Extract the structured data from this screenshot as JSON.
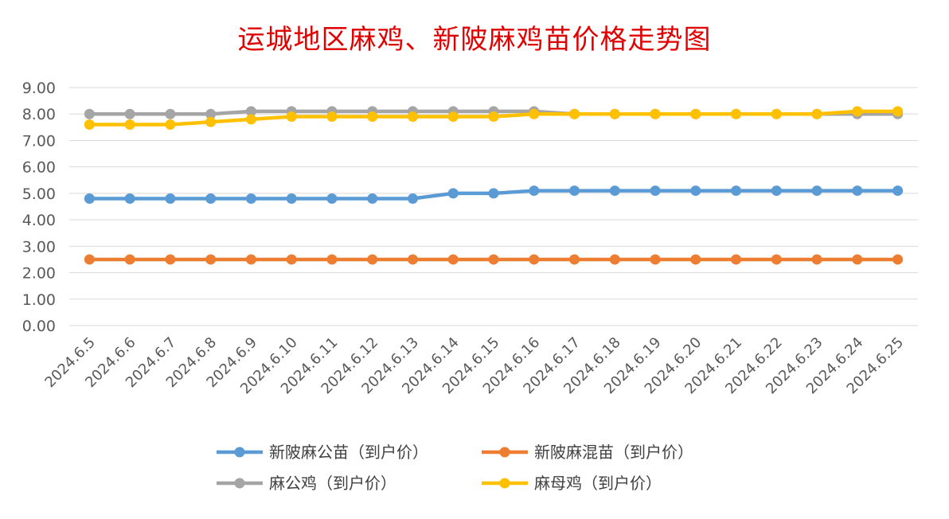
{
  "chart_data": {
    "type": "line",
    "title": "运城地区麻鸡、新陂麻鸡苗价格走势图",
    "xlabel": "",
    "ylabel": "",
    "ylim": [
      0,
      9
    ],
    "ytick_labels": [
      "0.00",
      "1.00",
      "2.00",
      "3.00",
      "4.00",
      "5.00",
      "6.00",
      "7.00",
      "8.00",
      "9.00"
    ],
    "grid": true,
    "legend_position": "bottom",
    "categories": [
      "2024.6.5",
      "2024.6.6",
      "2024.6.7",
      "2024.6.8",
      "2024.6.9",
      "2024.6.10",
      "2024.6.11",
      "2024.6.12",
      "2024.6.13",
      "2024.6.14",
      "2024.6.15",
      "2024.6.16",
      "2024.6.17",
      "2024.6.18",
      "2024.6.19",
      "2024.6.20",
      "2024.6.21",
      "2024.6.22",
      "2024.6.23",
      "2024.6.24",
      "2024.6.25"
    ],
    "series": [
      {
        "name": "新陂麻公苗（到户价）",
        "color": "#5b9bd5",
        "values": [
          4.8,
          4.8,
          4.8,
          4.8,
          4.8,
          4.8,
          4.8,
          4.8,
          4.8,
          5.0,
          5.0,
          5.1,
          5.1,
          5.1,
          5.1,
          5.1,
          5.1,
          5.1,
          5.1,
          5.1,
          5.1
        ]
      },
      {
        "name": "新陂麻混苗（到户价）",
        "color": "#ed7d31",
        "values": [
          2.5,
          2.5,
          2.5,
          2.5,
          2.5,
          2.5,
          2.5,
          2.5,
          2.5,
          2.5,
          2.5,
          2.5,
          2.5,
          2.5,
          2.5,
          2.5,
          2.5,
          2.5,
          2.5,
          2.5,
          2.5
        ]
      },
      {
        "name": "麻公鸡（到户价）",
        "color": "#a5a5a5",
        "values": [
          8.0,
          8.0,
          8.0,
          8.0,
          8.1,
          8.1,
          8.1,
          8.1,
          8.1,
          8.1,
          8.1,
          8.1,
          8.0,
          8.0,
          8.0,
          8.0,
          8.0,
          8.0,
          8.0,
          8.0,
          8.0
        ]
      },
      {
        "name": "麻母鸡（到户价）",
        "color": "#ffc000",
        "values": [
          7.6,
          7.6,
          7.6,
          7.7,
          7.8,
          7.9,
          7.9,
          7.9,
          7.9,
          7.9,
          7.9,
          8.0,
          8.0,
          8.0,
          8.0,
          8.0,
          8.0,
          8.0,
          8.0,
          8.1,
          8.1
        ]
      }
    ]
  }
}
